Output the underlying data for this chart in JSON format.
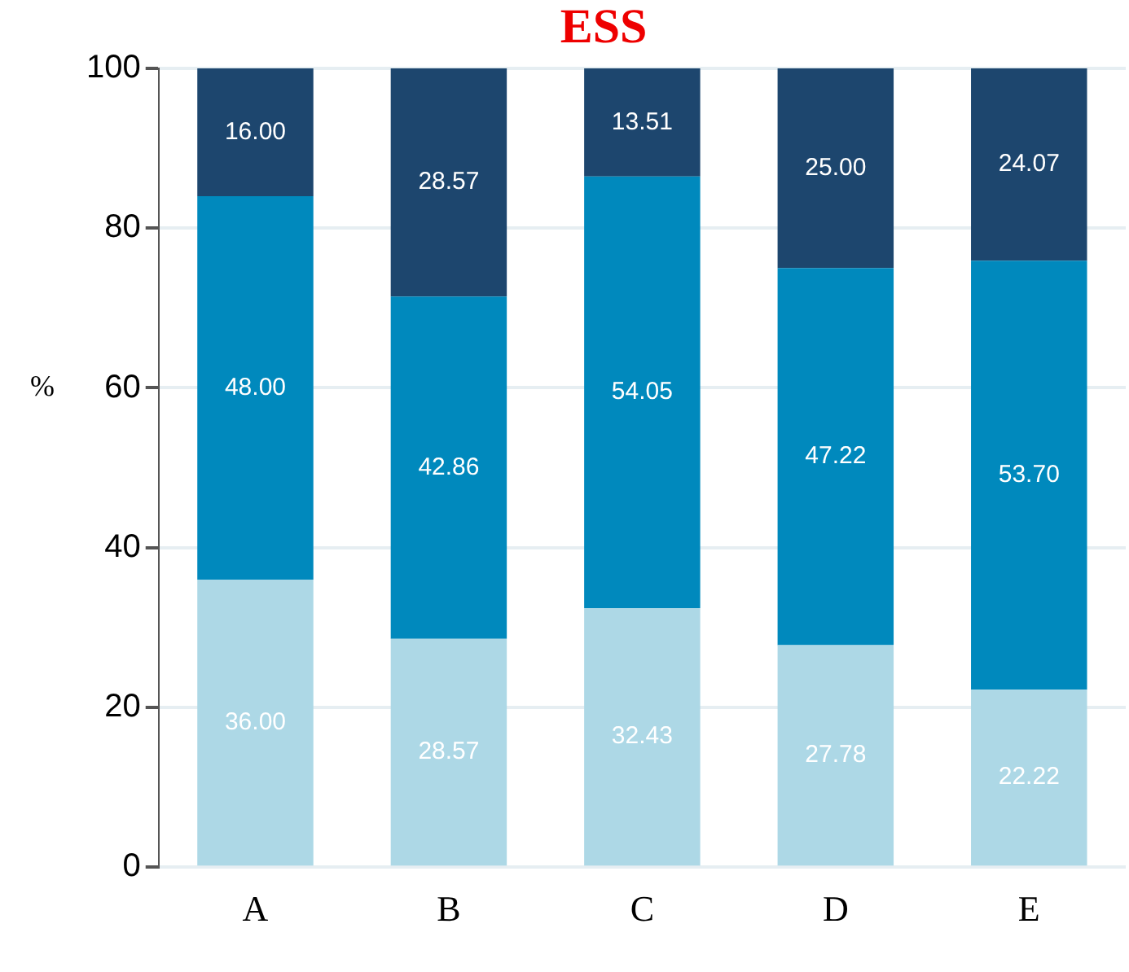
{
  "chart_data": {
    "type": "bar",
    "title": "ESS",
    "ylabel": "%",
    "categories": [
      "A",
      "B",
      "C",
      "D",
      "E"
    ],
    "stacked": true,
    "grid": "y",
    "legend": false,
    "ylim": [
      0,
      100
    ],
    "yticks": [
      0,
      20,
      40,
      60,
      80,
      100
    ],
    "series": [
      {
        "color": "#add8e6",
        "values": [
          36.0,
          28.57,
          32.43,
          27.78,
          22.22
        ],
        "value_labels": [
          "36.00",
          "28.57",
          "32.43",
          "27.78",
          "22.22"
        ]
      },
      {
        "color": "#0089bd",
        "values": [
          48.0,
          42.86,
          54.05,
          47.22,
          53.7
        ],
        "value_labels": [
          "48.00",
          "42.86",
          "54.05",
          "47.22",
          "53.70"
        ]
      },
      {
        "color": "#1d466e",
        "values": [
          16.0,
          28.57,
          13.51,
          25.0,
          24.07
        ],
        "value_labels": [
          "16.00",
          "28.57",
          "13.51",
          "25.00",
          "24.07"
        ]
      }
    ]
  }
}
